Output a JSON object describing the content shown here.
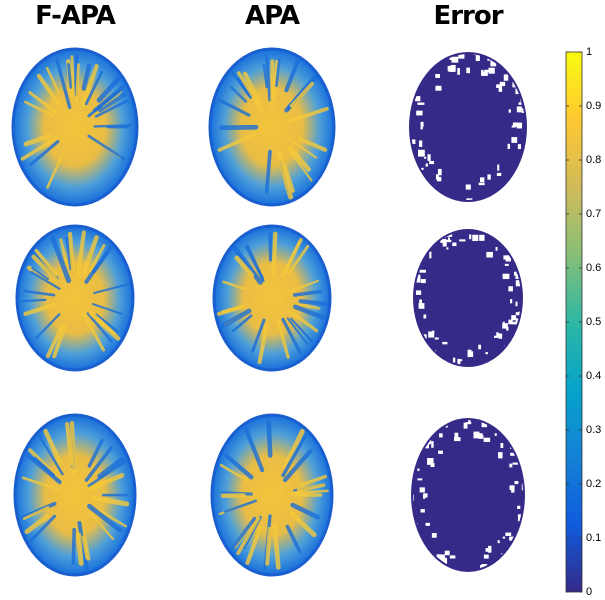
{
  "columns": [
    "F-APA",
    "APA",
    "Error"
  ],
  "colorbar": {
    "lim": [
      0,
      1
    ],
    "ticks": [
      0,
      0.1,
      0.2,
      0.3,
      0.4,
      0.5,
      0.6,
      0.7,
      0.8,
      0.9,
      1
    ],
    "colors": [
      "#352a87",
      "#0f5cdd",
      "#1481d6",
      "#06a4ca",
      "#2eb7a4",
      "#87bf77",
      "#d1bb59",
      "#fec832",
      "#f9fb0e"
    ]
  }
}
